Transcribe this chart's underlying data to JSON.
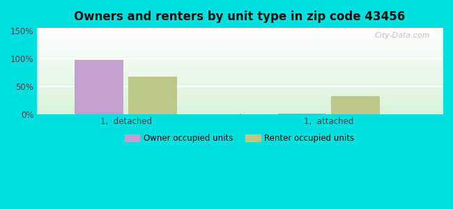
{
  "title": "Owners and renters by unit type in zip code 43456",
  "categories": [
    "1,  detached",
    "1,  attached"
  ],
  "owner_values": [
    98,
    1
  ],
  "renter_values": [
    68,
    32
  ],
  "owner_color": "#c2a0d0",
  "renter_color": "#bcc88a",
  "ylabel_ticks": [
    0,
    50,
    100,
    150
  ],
  "ylim": [
    0,
    155
  ],
  "background_outer": "#00e0e0",
  "legend_owner": "Owner occupied units",
  "legend_renter": "Renter occupied units",
  "bar_width": 0.12,
  "watermark": "City-Data.com",
  "group_centers": [
    0.22,
    0.72
  ]
}
